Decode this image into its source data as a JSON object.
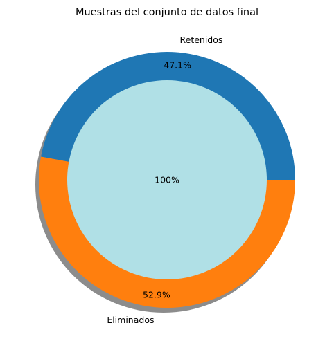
{
  "chart_data": {
    "type": "pie",
    "title": "Muestras del conjunto de datos final",
    "outer_ring": {
      "slices": [
        {
          "label": "Retenidos",
          "value": 47.1,
          "pct_label": "47.1%",
          "color": "#1f77b4"
        },
        {
          "label": "Eliminados",
          "value": 52.9,
          "pct_label": "52.9%",
          "color": "#ff7f0e"
        }
      ],
      "shadow": true
    },
    "inner_circle": {
      "pct_label": "100%",
      "value": 100,
      "color": "#b0e0e6"
    },
    "legend": "none",
    "grid": false
  }
}
